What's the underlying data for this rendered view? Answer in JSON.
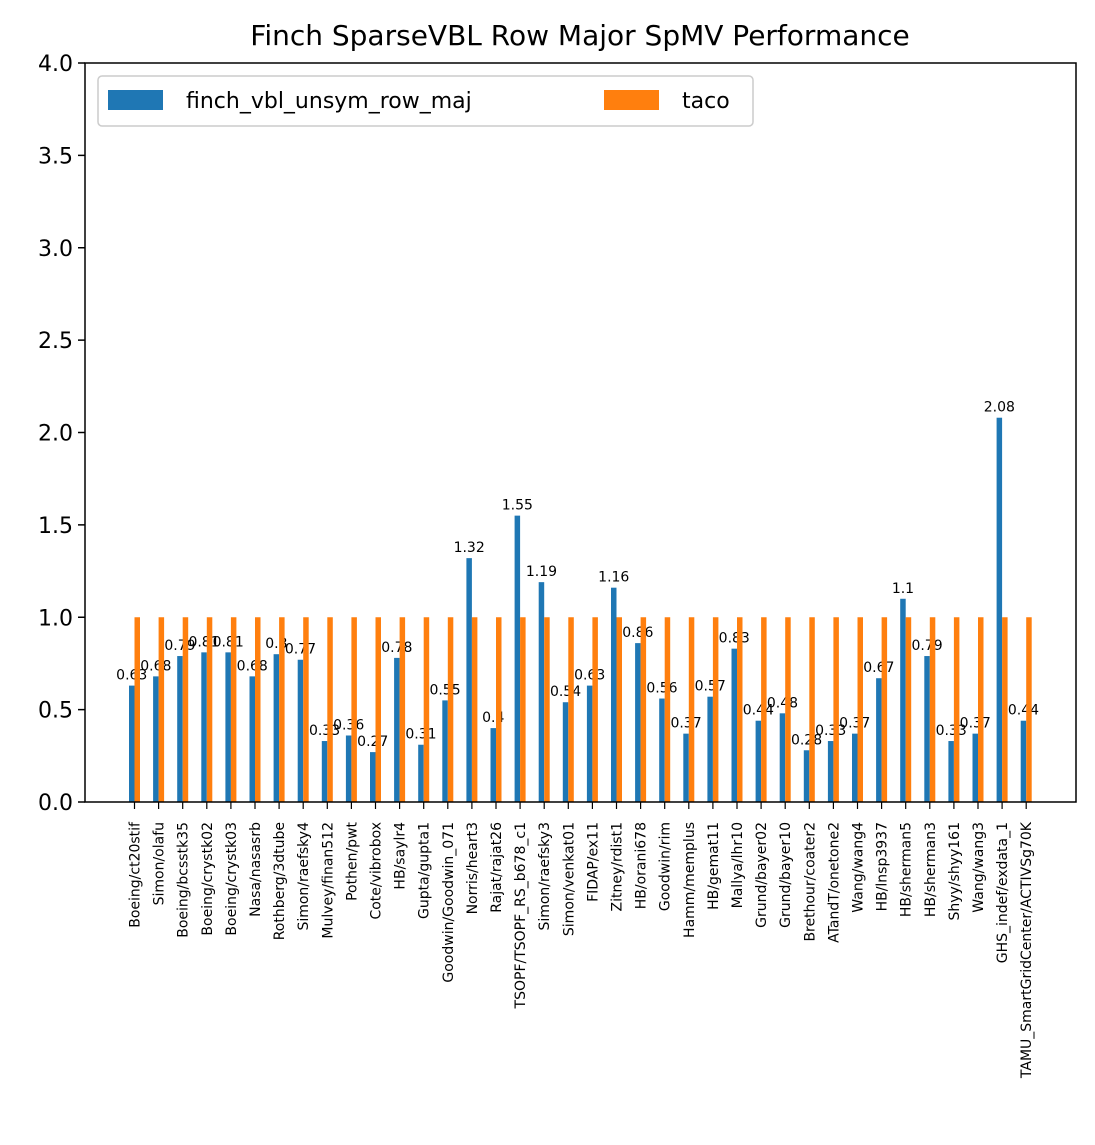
{
  "chart_data": {
    "type": "bar",
    "title": "Finch SparseVBL Row Major SpMV Performance",
    "xlabel": "",
    "ylabel": "",
    "ylim": [
      0,
      4.0
    ],
    "yticks": [
      "0.0",
      "0.5",
      "1.0",
      "1.5",
      "2.0",
      "2.5",
      "3.0",
      "3.5",
      "4.0"
    ],
    "grid": false,
    "legend_position": "top-left",
    "categories": [
      "Boeing/ct20stif",
      "Simon/olafu",
      "Boeing/bcsstk35",
      "Boeing/crystk02",
      "Boeing/crystk03",
      "Nasa/nasasrb",
      "Rothberg/3dtube",
      "Simon/raefsky4",
      "Mulvey/finan512",
      "Pothen/pwt",
      "Cote/vibrobox",
      "HB/saylr4",
      "Gupta/gupta1",
      "Goodwin/Goodwin_071",
      "Norris/heart3",
      "Rajat/rajat26",
      "TSOPF/TSOPF_RS_b678_c1",
      "Simon/raefsky3",
      "Simon/venkat01",
      "FIDAP/ex11",
      "Zitney/rdist1",
      "HB/orani678",
      "Goodwin/rim",
      "Hamm/memplus",
      "HB/gemat11",
      "Mallya/lhr10",
      "Grund/bayer02",
      "Grund/bayer10",
      "Brethour/coater2",
      "ATandT/onetone2",
      "Wang/wang4",
      "HB/lnsp3937",
      "HB/sherman5",
      "HB/sherman3",
      "Shyy/shyy161",
      "Wang/wang3",
      "GHS_indef/exdata_1",
      "TAMU_SmartGridCenter/ACTIVSg70K"
    ],
    "series": [
      {
        "name": "finch_vbl_unsym_row_maj",
        "color": "#1f77b4",
        "values": [
          0.63,
          0.68,
          0.79,
          0.81,
          0.81,
          0.68,
          0.8,
          0.77,
          0.33,
          0.36,
          0.27,
          0.78,
          0.31,
          0.55,
          1.32,
          0.4,
          1.55,
          1.19,
          0.54,
          0.63,
          1.16,
          0.86,
          0.56,
          0.37,
          0.57,
          0.83,
          0.44,
          0.48,
          0.28,
          0.33,
          0.37,
          0.67,
          1.1,
          0.79,
          0.33,
          0.37,
          2.08,
          0.44
        ],
        "labels": [
          "0.63",
          "0.68",
          "0.79",
          "0.81",
          "0.81",
          "0.68",
          "0.8",
          "0.77",
          "0.33",
          "0.36",
          "0.27",
          "0.78",
          "0.31",
          "0.55",
          "1.32",
          "0.4",
          "1.55",
          "1.19",
          "0.54",
          "0.63",
          "1.16",
          "0.86",
          "0.56",
          "0.37",
          "0.57",
          "0.83",
          "0.44",
          "0.48",
          "0.28",
          "0.33",
          "0.37",
          "0.67",
          "1.1",
          "0.79",
          "0.33",
          "0.37",
          "2.08",
          "0.44"
        ]
      },
      {
        "name": "taco",
        "color": "#ff7f0e",
        "values": [
          1,
          1,
          1,
          1,
          1,
          1,
          1,
          1,
          1,
          1,
          1,
          1,
          1,
          1,
          1,
          1,
          1,
          1,
          1,
          1,
          1,
          1,
          1,
          1,
          1,
          1,
          1,
          1,
          1,
          1,
          1,
          1,
          1,
          1,
          1,
          1,
          1,
          1
        ]
      }
    ]
  }
}
